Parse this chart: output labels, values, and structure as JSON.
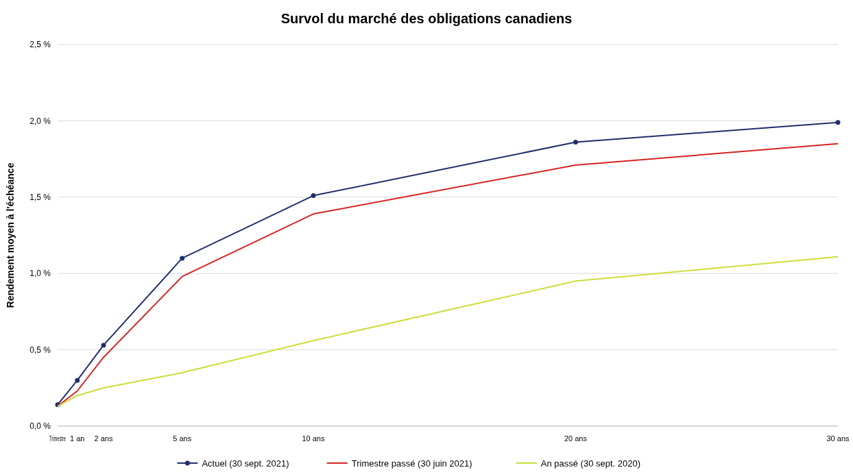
{
  "chart_data": {
    "type": "line",
    "title": "Survol du marché des obligations canadiens",
    "ylabel": "Rendement moyen à l'échéance",
    "x": [
      0.25,
      1,
      2,
      5,
      10,
      20,
      30
    ],
    "xlim": [
      0.25,
      30
    ],
    "xticks": [
      {
        "value": 0.25,
        "label": "Trimestre"
      },
      {
        "value": 1,
        "label": "1 an"
      },
      {
        "value": 2,
        "label": "2 ans"
      },
      {
        "value": 5,
        "label": "5 ans"
      },
      {
        "value": 10,
        "label": "10 ans"
      },
      {
        "value": 20,
        "label": "20 ans"
      },
      {
        "value": 30,
        "label": "30 ans"
      }
    ],
    "ylim": [
      0,
      2.5
    ],
    "yticks": [
      {
        "value": 0,
        "label": "0,0 %"
      },
      {
        "value": 0.5,
        "label": "0,5 %"
      },
      {
        "value": 1,
        "label": "1,0 %"
      },
      {
        "value": 1.5,
        "label": "1,5 %"
      },
      {
        "value": 2,
        "label": "2,0 %"
      },
      {
        "value": 2.5,
        "label": "2,5 %"
      }
    ],
    "grid": "y",
    "legend": "bottom",
    "series": [
      {
        "name": "Actuel (30 sept. 2021)",
        "color": "#1f2f6b",
        "marker": "circle",
        "values": [
          0.14,
          0.3,
          0.53,
          1.1,
          1.51,
          1.86,
          1.99
        ]
      },
      {
        "name": "Trimestre passé (30 juin 2021)",
        "color": "#d62323",
        "marker": "none",
        "values": [
          0.13,
          0.23,
          0.45,
          0.98,
          1.39,
          1.71,
          1.85
        ]
      },
      {
        "name": "An passé (30 sept. 2020)",
        "color": "#cfdc3a",
        "marker": "none",
        "values": [
          0.13,
          0.2,
          0.25,
          0.35,
          0.56,
          0.95,
          1.11
        ]
      }
    ]
  }
}
